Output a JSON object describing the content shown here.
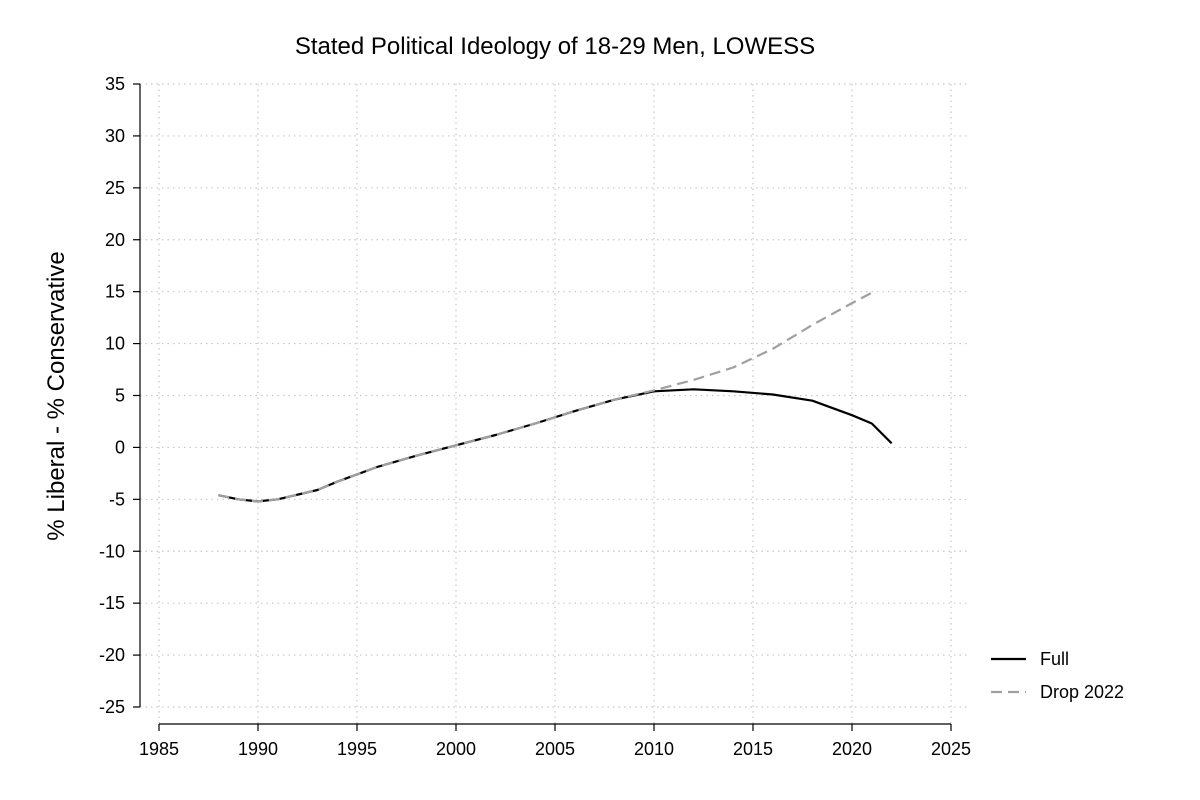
{
  "chart_data": {
    "type": "line",
    "title": "Stated Political Ideology of 18-29 Men, LOWESS",
    "xlabel": "",
    "ylabel": "% Liberal - % Conservative",
    "xlim": [
      1985,
      2025
    ],
    "ylim": [
      -25,
      35
    ],
    "xticks": [
      1985,
      1990,
      1995,
      2000,
      2005,
      2010,
      2015,
      2020,
      2025
    ],
    "yticks": [
      35,
      30,
      25,
      20,
      15,
      10,
      5,
      0,
      -5,
      -10,
      -15,
      -20,
      -25
    ],
    "grid": true,
    "legend_position": "bottom-right",
    "series": [
      {
        "name": "Full",
        "style": "solid",
        "color": "#000000",
        "x": [
          1988,
          1989,
          1990,
          1991,
          1993,
          1994,
          1996,
          1998,
          2000,
          2002,
          2004,
          2006,
          2008,
          2010,
          2012,
          2014,
          2016,
          2018,
          2020,
          2021,
          2022
        ],
        "y": [
          -4.6,
          -5.0,
          -5.2,
          -5.0,
          -4.1,
          -3.3,
          -1.9,
          -0.8,
          0.2,
          1.2,
          2.3,
          3.5,
          4.6,
          5.4,
          5.6,
          5.4,
          5.1,
          4.5,
          3.1,
          2.3,
          0.4
        ]
      },
      {
        "name": "Drop 2022",
        "style": "dashed",
        "color": "#a0a0a0",
        "x": [
          1988,
          1989,
          1990,
          1991,
          1993,
          1994,
          1996,
          1998,
          2000,
          2002,
          2004,
          2006,
          2008,
          2010,
          2012,
          2014,
          2016,
          2018,
          2020,
          2021
        ],
        "y": [
          -4.6,
          -5.0,
          -5.2,
          -5.0,
          -4.1,
          -3.3,
          -1.9,
          -0.8,
          0.2,
          1.2,
          2.3,
          3.5,
          4.6,
          5.5,
          6.5,
          7.7,
          9.5,
          11.8,
          13.9,
          14.9
        ]
      }
    ]
  }
}
